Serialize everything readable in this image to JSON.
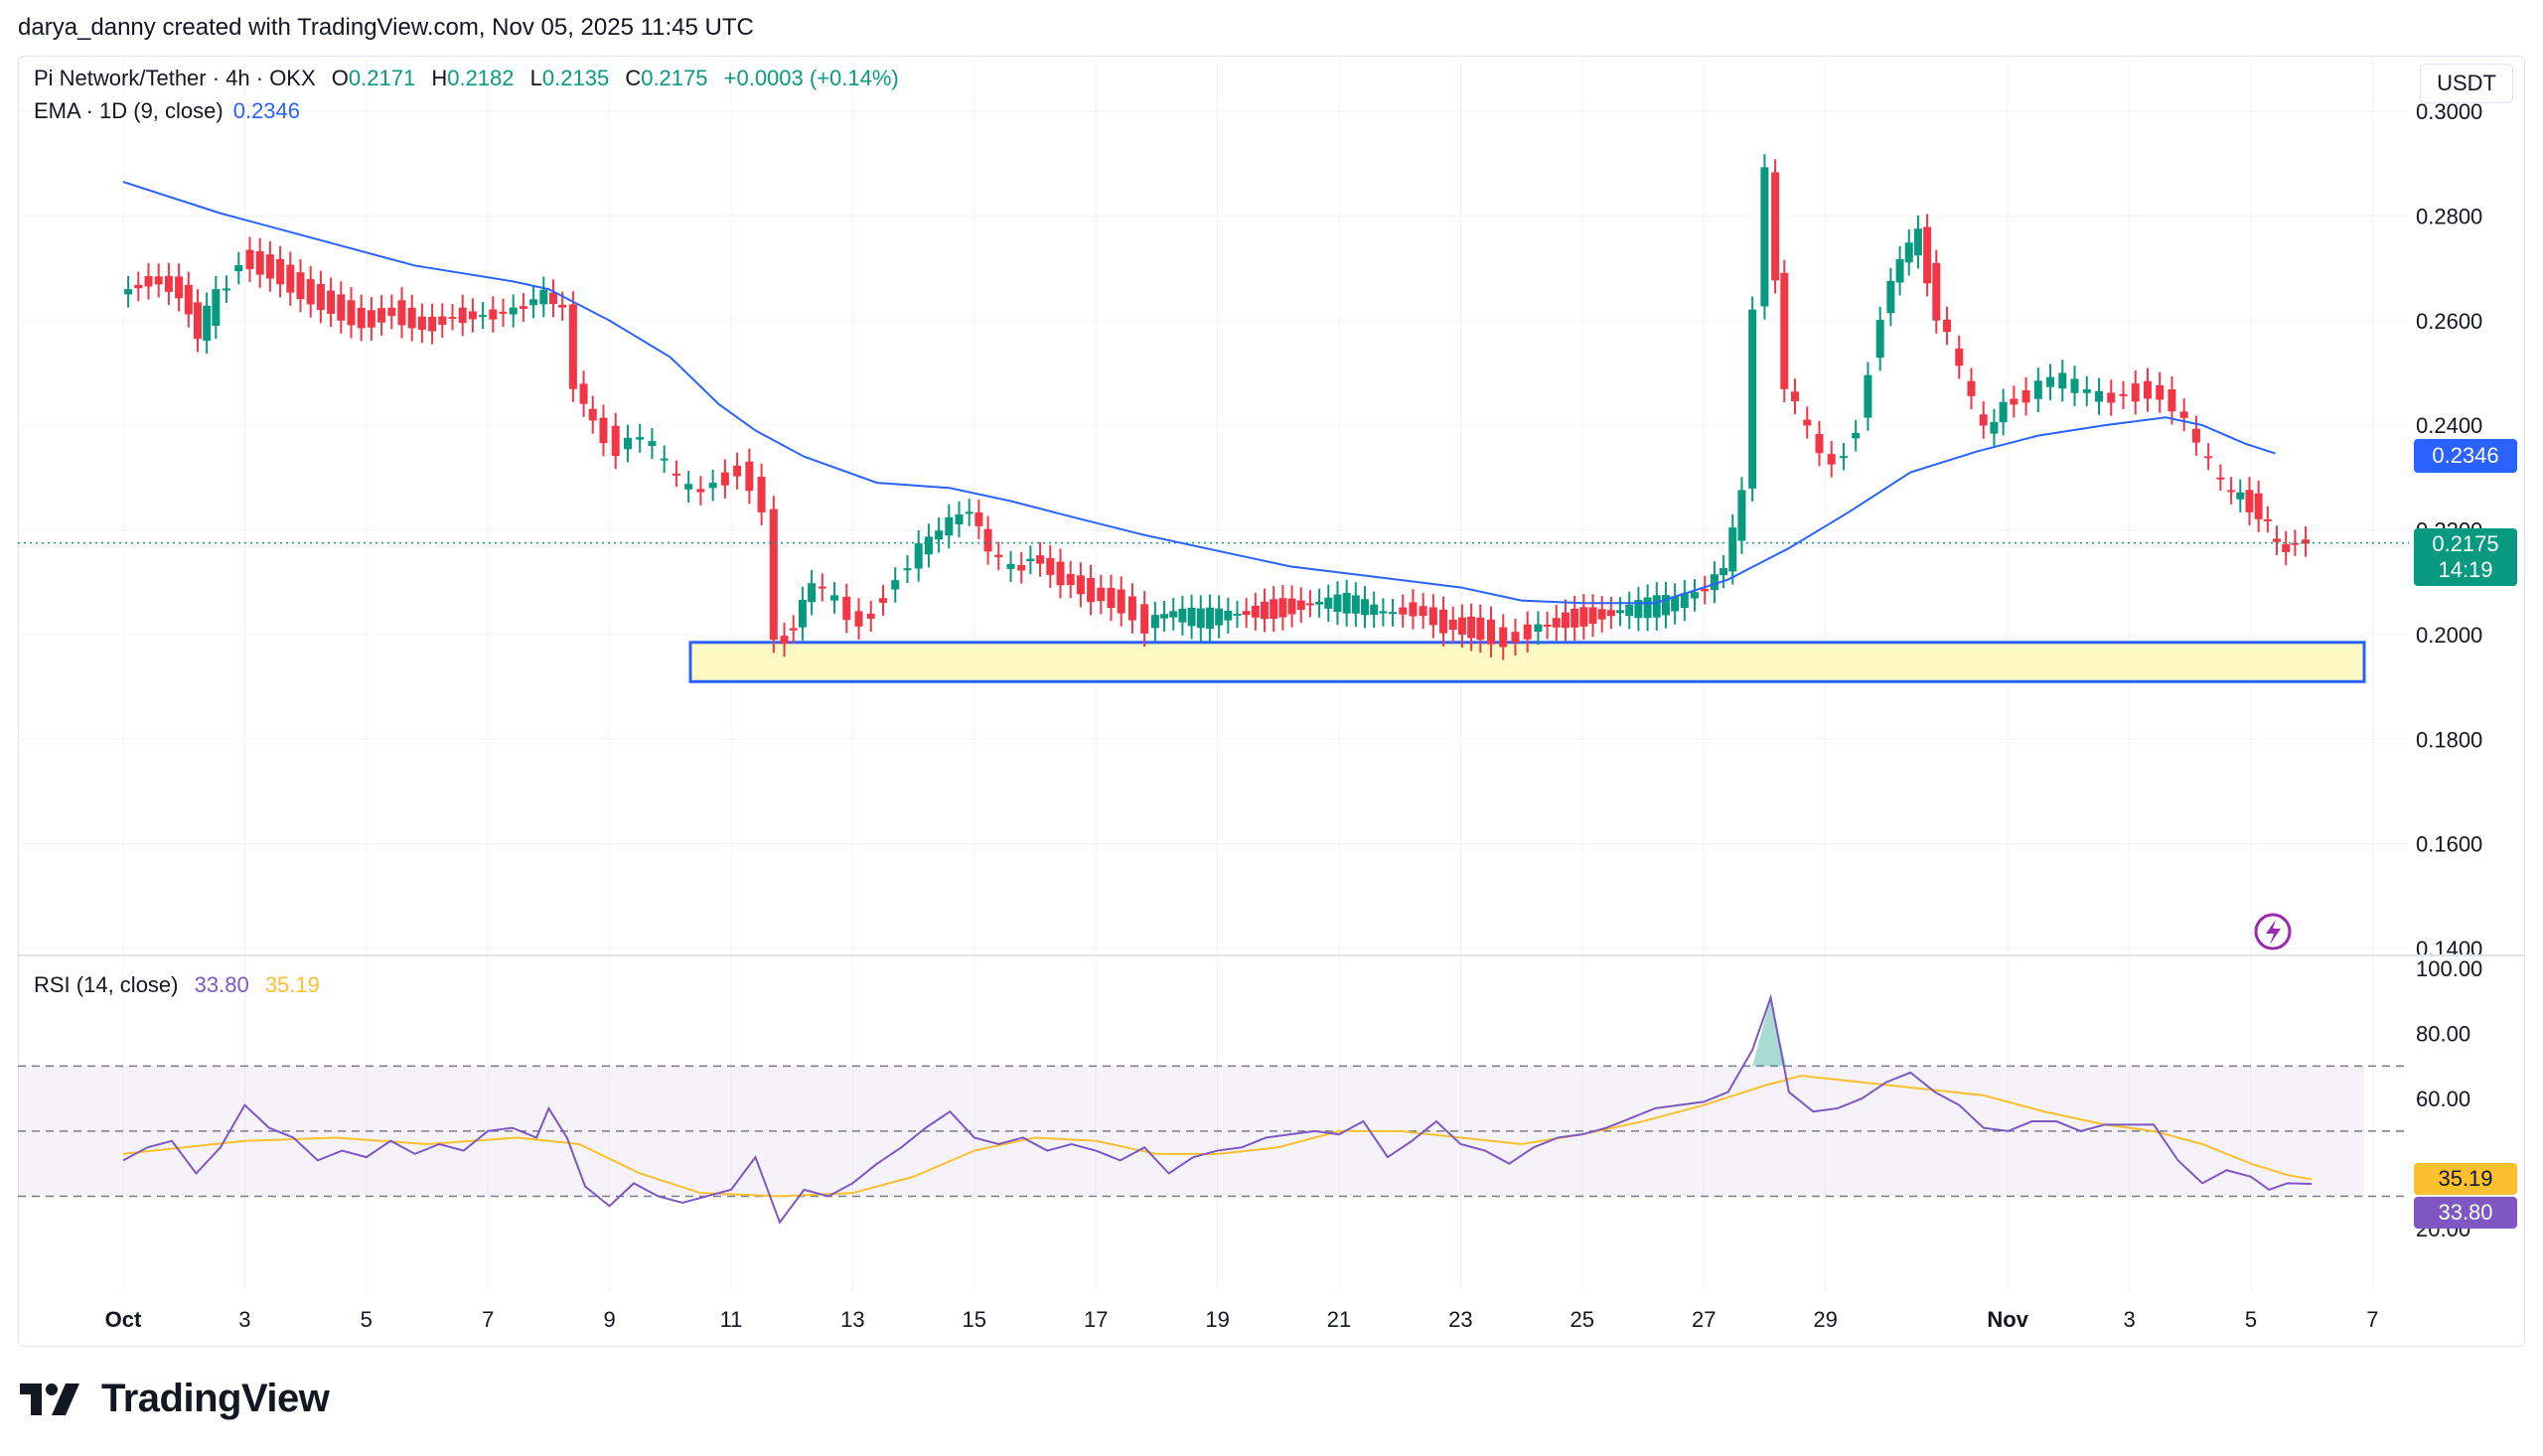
{
  "credit": "darya_danny created with TradingView.com, Nov 05, 2025 11:45 UTC",
  "legend": {
    "symbol": "Pi Network/Tether · 4h · OKX",
    "o_label": "O",
    "o": "0.2171",
    "h_label": "H",
    "h": "0.2182",
    "l_label": "L",
    "l": "0.2135",
    "c_label": "C",
    "c": "0.2175",
    "change": "+0.0003 (+0.14%)",
    "ema_name": "EMA · 1D (9, close)",
    "ema_value": "0.2346",
    "rsi_name": "RSI (14, close)",
    "rsi_value": "33.80",
    "rsi_ma_value": "35.19"
  },
  "currency_button": "USDT",
  "brand": "TradingView",
  "price_tags": {
    "ema": "0.2346",
    "last": "0.2175",
    "countdown": "14:19",
    "rsi_ma": "35.19",
    "rsi": "33.80"
  },
  "colors": {
    "up": "#089981",
    "down": "#f23645",
    "ema": "#2962ff",
    "rsi": "#7e57c2",
    "rsi_ma": "#fbc02d",
    "zone_fill": "#fff9c4",
    "zone_border": "#2962ff"
  },
  "chart_data": [
    {
      "type": "candlestick",
      "title": "Pi Network/Tether · 4h · OKX",
      "x_ticks": [
        "Oct",
        "3",
        "5",
        "7",
        "9",
        "11",
        "13",
        "15",
        "17",
        "19",
        "21",
        "23",
        "25",
        "27",
        "29",
        "Nov",
        "3",
        "5",
        "7"
      ],
      "y_ticks": [
        "0.3000",
        "0.2800",
        "0.2600",
        "0.2400",
        "0.2200",
        "0.2000",
        "0.1800",
        "0.1600",
        "0.1400"
      ],
      "ylim": [
        0.14,
        0.3
      ],
      "support_zone": [
        0.191,
        0.1985
      ],
      "series": [
        {
          "name": "EMA · 1D (9, close)",
          "points": [
            [
              0,
              0.2865
            ],
            [
              1.6,
              0.2805
            ],
            [
              3.2,
              0.2755
            ],
            [
              4.8,
              0.2705
            ],
            [
              6.4,
              0.2675
            ],
            [
              7.0,
              0.266
            ],
            [
              8.0,
              0.26
            ],
            [
              9.0,
              0.253
            ],
            [
              9.8,
              0.244
            ],
            [
              10.4,
              0.239
            ],
            [
              11.2,
              0.234
            ],
            [
              12.4,
              0.229
            ],
            [
              13.6,
              0.228
            ],
            [
              14.6,
              0.2255
            ],
            [
              15.6,
              0.2225
            ],
            [
              16.8,
              0.219
            ],
            [
              18.0,
              0.216
            ],
            [
              19.2,
              0.213
            ],
            [
              20.6,
              0.211
            ],
            [
              22.0,
              0.209
            ],
            [
              23.0,
              0.2065
            ],
            [
              24.0,
              0.206
            ],
            [
              25.2,
              0.206
            ],
            [
              26.4,
              0.2105
            ],
            [
              27.4,
              0.2165
            ],
            [
              28.4,
              0.2235
            ],
            [
              29.4,
              0.231
            ],
            [
              30.5,
              0.235
            ],
            [
              31.5,
              0.238
            ],
            [
              32.6,
              0.24
            ],
            [
              33.6,
              0.2415
            ],
            [
              34.2,
              0.24
            ],
            [
              34.9,
              0.2365
            ],
            [
              35.4,
              0.2346
            ]
          ]
        },
        {
          "name": "price",
          "points": [
            [
              0,
              0.265
            ],
            [
              0.5,
              0.268
            ],
            [
              1.0,
              0.266
            ],
            [
              1.3,
              0.258
            ],
            [
              1.6,
              0.264
            ],
            [
              2.0,
              0.272
            ],
            [
              2.5,
              0.27
            ],
            [
              3.0,
              0.266
            ],
            [
              3.5,
              0.263
            ],
            [
              4.0,
              0.26
            ],
            [
              4.5,
              0.262
            ],
            [
              5.0,
              0.259
            ],
            [
              5.5,
              0.261
            ],
            [
              6.0,
              0.261
            ],
            [
              6.5,
              0.262
            ],
            [
              7.0,
              0.265
            ],
            [
              7.3,
              0.262
            ],
            [
              7.5,
              0.248
            ],
            [
              7.8,
              0.24
            ],
            [
              8.2,
              0.236
            ],
            [
              8.6,
              0.238
            ],
            [
              9.0,
              0.232
            ],
            [
              9.4,
              0.227
            ],
            [
              9.8,
              0.229
            ],
            [
              10.2,
              0.232
            ],
            [
              10.6,
              0.225
            ],
            [
              10.8,
              0.198
            ],
            [
              11.1,
              0.202
            ],
            [
              11.4,
              0.21
            ],
            [
              11.8,
              0.206
            ],
            [
              12.2,
              0.202
            ],
            [
              12.6,
              0.208
            ],
            [
              13.0,
              0.214
            ],
            [
              13.5,
              0.22
            ],
            [
              14.0,
              0.224
            ],
            [
              14.3,
              0.216
            ],
            [
              14.7,
              0.212
            ],
            [
              15.0,
              0.215
            ],
            [
              15.5,
              0.211
            ],
            [
              16.0,
              0.208
            ],
            [
              16.5,
              0.206
            ],
            [
              16.9,
              0.202
            ],
            [
              17.2,
              0.204
            ],
            [
              17.8,
              0.203
            ],
            [
              18.4,
              0.204
            ],
            [
              19.0,
              0.205
            ],
            [
              19.6,
              0.206
            ],
            [
              20.2,
              0.206
            ],
            [
              20.8,
              0.204
            ],
            [
              21.3,
              0.205
            ],
            [
              21.8,
              0.202
            ],
            [
              22.4,
              0.201
            ],
            [
              22.8,
              0.199
            ],
            [
              23.2,
              0.201
            ],
            [
              23.8,
              0.203
            ],
            [
              24.4,
              0.204
            ],
            [
              25.0,
              0.205
            ],
            [
              25.6,
              0.206
            ],
            [
              26.1,
              0.209
            ],
            [
              26.4,
              0.213
            ],
            [
              26.7,
              0.226
            ],
            [
              26.9,
              0.264
            ],
            [
              27.1,
              0.288
            ],
            [
              27.4,
              0.248
            ],
            [
              27.8,
              0.238
            ],
            [
              28.2,
              0.232
            ],
            [
              28.6,
              0.24
            ],
            [
              29.0,
              0.262
            ],
            [
              29.3,
              0.272
            ],
            [
              29.6,
              0.276
            ],
            [
              29.9,
              0.262
            ],
            [
              30.3,
              0.25
            ],
            [
              30.7,
              0.238
            ],
            [
              31.0,
              0.244
            ],
            [
              31.4,
              0.246
            ],
            [
              31.8,
              0.249
            ],
            [
              32.2,
              0.247
            ],
            [
              32.6,
              0.245
            ],
            [
              33.0,
              0.246
            ],
            [
              33.4,
              0.247
            ],
            [
              33.8,
              0.244
            ],
            [
              34.2,
              0.236
            ],
            [
              34.6,
              0.228
            ],
            [
              34.9,
              0.226
            ],
            [
              35.2,
              0.224
            ],
            [
              35.5,
              0.216
            ],
            [
              35.8,
              0.218
            ],
            [
              36.0,
              0.2175
            ]
          ]
        }
      ]
    },
    {
      "type": "line",
      "title": "RSI (14, close)",
      "y_ticks": [
        "100.00",
        "80.00",
        "60.00",
        "20.00"
      ],
      "ylim": [
        10,
        100
      ],
      "bands": [
        70,
        50,
        30
      ],
      "series": [
        {
          "name": "RSI",
          "points": [
            [
              0,
              41
            ],
            [
              0.4,
              45
            ],
            [
              0.8,
              47
            ],
            [
              1.2,
              37
            ],
            [
              1.6,
              45
            ],
            [
              2.0,
              58
            ],
            [
              2.4,
              51
            ],
            [
              2.8,
              48
            ],
            [
              3.2,
              41
            ],
            [
              3.6,
              44
            ],
            [
              4.0,
              42
            ],
            [
              4.4,
              47
            ],
            [
              4.8,
              43
            ],
            [
              5.2,
              46
            ],
            [
              5.6,
              44
            ],
            [
              6.0,
              50
            ],
            [
              6.4,
              51
            ],
            [
              6.8,
              48
            ],
            [
              7.0,
              57
            ],
            [
              7.3,
              48
            ],
            [
              7.6,
              33
            ],
            [
              8.0,
              27
            ],
            [
              8.4,
              34
            ],
            [
              8.8,
              30
            ],
            [
              9.2,
              28
            ],
            [
              9.6,
              30
            ],
            [
              10.0,
              32
            ],
            [
              10.4,
              42
            ],
            [
              10.8,
              22
            ],
            [
              11.2,
              32
            ],
            [
              11.6,
              30
            ],
            [
              12.0,
              34
            ],
            [
              12.4,
              40
            ],
            [
              12.8,
              45
            ],
            [
              13.2,
              51
            ],
            [
              13.6,
              56
            ],
            [
              14.0,
              48
            ],
            [
              14.4,
              46
            ],
            [
              14.8,
              48
            ],
            [
              15.2,
              44
            ],
            [
              15.6,
              46
            ],
            [
              16.0,
              44
            ],
            [
              16.4,
              41
            ],
            [
              16.8,
              45
            ],
            [
              17.2,
              37
            ],
            [
              17.6,
              42
            ],
            [
              18.0,
              44
            ],
            [
              18.4,
              45
            ],
            [
              18.8,
              48
            ],
            [
              19.2,
              49
            ],
            [
              19.6,
              50
            ],
            [
              20.0,
              49
            ],
            [
              20.4,
              53
            ],
            [
              20.8,
              42
            ],
            [
              21.2,
              47
            ],
            [
              21.6,
              53
            ],
            [
              22.0,
              46
            ],
            [
              22.4,
              44
            ],
            [
              22.8,
              40
            ],
            [
              23.2,
              45
            ],
            [
              23.6,
              48
            ],
            [
              24.0,
              49
            ],
            [
              24.4,
              51
            ],
            [
              24.8,
              54
            ],
            [
              25.2,
              57
            ],
            [
              25.6,
              58
            ],
            [
              26.0,
              59
            ],
            [
              26.4,
              62
            ],
            [
              26.8,
              75
            ],
            [
              27.1,
              91
            ],
            [
              27.4,
              62
            ],
            [
              27.8,
              56
            ],
            [
              28.2,
              57
            ],
            [
              28.6,
              60
            ],
            [
              29.0,
              65
            ],
            [
              29.4,
              68
            ],
            [
              29.8,
              62
            ],
            [
              30.2,
              58
            ],
            [
              30.6,
              51
            ],
            [
              31.0,
              50
            ],
            [
              31.4,
              53
            ],
            [
              31.8,
              53
            ],
            [
              32.2,
              50
            ],
            [
              32.6,
              52
            ],
            [
              33.0,
              52
            ],
            [
              33.4,
              52
            ],
            [
              33.8,
              41
            ],
            [
              34.2,
              34
            ],
            [
              34.6,
              38
            ],
            [
              35.0,
              36
            ],
            [
              35.3,
              32
            ],
            [
              35.6,
              34
            ],
            [
              36.0,
              33.8
            ]
          ]
        },
        {
          "name": "RSI MA",
          "points": [
            [
              0,
              43
            ],
            [
              2.0,
              47
            ],
            [
              3.5,
              48
            ],
            [
              5.0,
              46
            ],
            [
              6.5,
              48
            ],
            [
              7.5,
              46
            ],
            [
              8.5,
              37
            ],
            [
              9.5,
              31
            ],
            [
              10.8,
              30
            ],
            [
              12.0,
              31
            ],
            [
              13.0,
              36
            ],
            [
              14.0,
              44
            ],
            [
              15.0,
              48
            ],
            [
              16.0,
              47
            ],
            [
              17.0,
              43
            ],
            [
              18.0,
              43
            ],
            [
              19.0,
              45
            ],
            [
              20.0,
              50
            ],
            [
              21.0,
              50
            ],
            [
              22.0,
              48
            ],
            [
              23.0,
              46
            ],
            [
              24.0,
              49
            ],
            [
              25.0,
              53
            ],
            [
              26.0,
              58
            ],
            [
              27.0,
              64
            ],
            [
              27.6,
              67
            ],
            [
              28.6,
              65
            ],
            [
              29.6,
              63
            ],
            [
              30.6,
              61
            ],
            [
              31.6,
              56
            ],
            [
              32.6,
              52
            ],
            [
              33.4,
              50
            ],
            [
              34.2,
              46
            ],
            [
              35.0,
              40
            ],
            [
              35.6,
              36.5
            ],
            [
              36.0,
              35.19
            ]
          ]
        }
      ]
    }
  ]
}
